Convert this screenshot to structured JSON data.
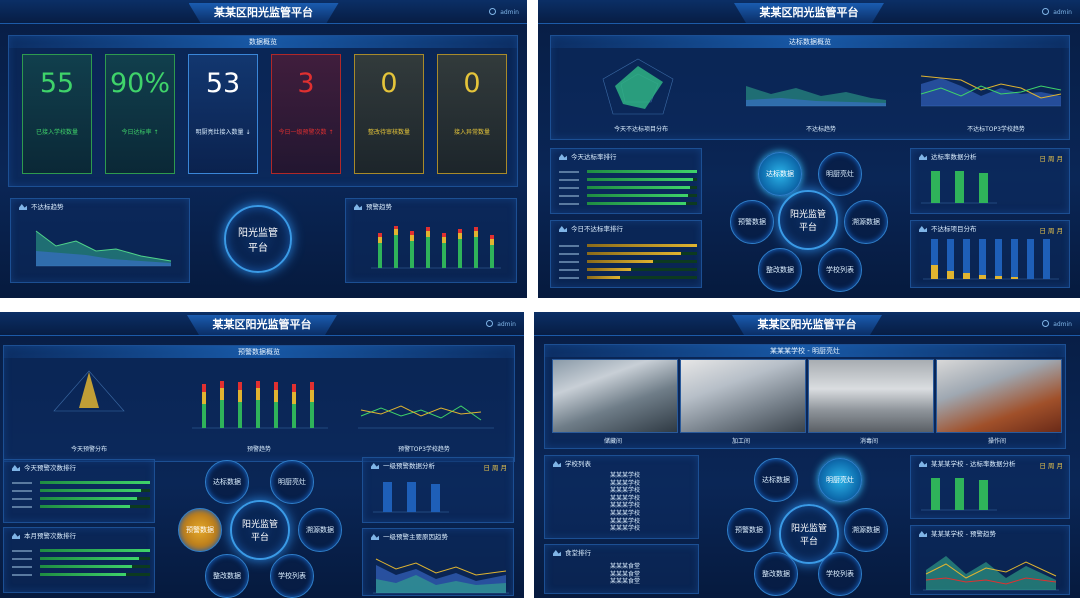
{
  "header": {
    "title": "某某区阳光监管平台",
    "user": "admin"
  },
  "q1": {
    "overview_title": "数据概览",
    "cards": [
      {
        "value": "55",
        "label": "已接入学校数量",
        "color": "#3fd36a"
      },
      {
        "value": "90%",
        "label": "今日达标率 ↑",
        "color": "#3fd36a"
      },
      {
        "value": "53",
        "label": "明厨亮灶接入数量 ↓",
        "color": "#ffffff"
      },
      {
        "value": "3",
        "label": "今日一级预警次数 ↑",
        "color": "#e03030"
      },
      {
        "value": "0",
        "label": "整改待审核数量",
        "color": "#e4c43a"
      },
      {
        "value": "0",
        "label": "接入异常数量",
        "color": "#e4c43a"
      }
    ],
    "left_panel": "不达标趋势",
    "right_panel": "预警趋势",
    "hub": [
      "阳光监管",
      "平台"
    ]
  },
  "q2": {
    "overview_title": "达标数据概览",
    "radar_caption": "今天不达标项目分布",
    "chart2_caption": "不达标趋势",
    "chart3_caption": "不达标TOP3学校趋势",
    "list1": "今天达标率排行",
    "list2": "今日不达标率排行",
    "right1": "达标率数据分析",
    "right2": "不达标项目分布",
    "toggle": "日 周 月",
    "hub": [
      "阳光监管",
      "平台"
    ],
    "sats": [
      "达标数据",
      "明厨亮灶",
      "溯源数据",
      "学校列表",
      "整改数据",
      "预警数据"
    ]
  },
  "q3": {
    "overview_title": "预警数据概览",
    "radar_caption": "今天预警分布",
    "chart2_caption": "预警趋势",
    "chart3_caption": "预警TOP3学校趋势",
    "list1": "今天预警次数排行",
    "list2": "本月预警次数排行",
    "right1": "一级预警数据分析",
    "right2": "一级预警主要原因趋势",
    "toggle": "日 周 月",
    "hub": [
      "阳光监管",
      "平台"
    ],
    "sats": [
      "达标数据",
      "明厨亮灶",
      "溯源数据",
      "学校列表",
      "整改数据",
      "预警数据"
    ]
  },
  "q4": {
    "overview_title": "某某某学校 - 明厨亮灶",
    "photos": [
      "储藏间",
      "加工间",
      "消毒间",
      "操作间"
    ],
    "list1": "学校列表",
    "schools": [
      "某某某学校",
      "某某某学校",
      "某某某学校",
      "某某某学校",
      "某某某学校",
      "某某某学校",
      "某某某学校",
      "某某某学校"
    ],
    "list2": "食堂排行",
    "canteens": [
      "某某某食堂",
      "某某某食堂",
      "某某某食堂"
    ],
    "right1": "某某某学校 - 达标率数据分析",
    "right2": "某某某学校 - 预警趋势",
    "toggle": "日 周 月",
    "hub": [
      "阳光监管",
      "平台"
    ],
    "sats": [
      "达标数据",
      "明厨亮灶",
      "溯源数据",
      "学校列表",
      "整改数据",
      "预警数据"
    ]
  }
}
